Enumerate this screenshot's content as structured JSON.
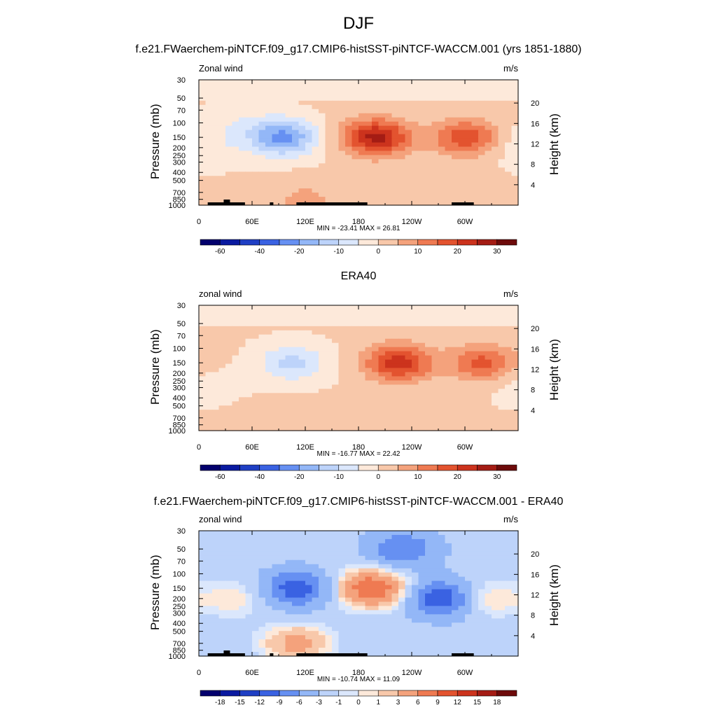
{
  "figure": {
    "title": "DJF"
  },
  "chart_data": [
    {
      "type": "heatmap",
      "title": "f.e21.FWaerchem-piNTCF.f09_g17.CMIP6-histSST-piNTCF-WACCM.001 (yrs 1851-1880)",
      "left_label": "Zonal wind",
      "right_label": "m/s",
      "ylabel": "Pressure (mb)",
      "y2label": "Height (km)",
      "x_ticks": [
        "0",
        "60E",
        "120E",
        "180",
        "120W",
        "60W"
      ],
      "y_ticks": [
        "30",
        "50",
        "70",
        "100",
        "150",
        "200",
        "250",
        "300",
        "400",
        "500",
        "700",
        "850",
        "1000"
      ],
      "y2_ticks": [
        "20",
        "16",
        "12",
        "8",
        "4"
      ],
      "min_max": "MIN = -23.41  MAX =  26.81",
      "min": -23.41,
      "max": 26.81,
      "colorbar_labels": [
        "-60",
        "-40",
        "-20",
        "-10",
        "0",
        "10",
        "20",
        "30"
      ],
      "features": [
        {
          "lon": 95,
          "p": 150,
          "v": -22
        },
        {
          "lon": 45,
          "p": 100,
          "v": -4
        },
        {
          "lon": 200,
          "p": 150,
          "v": 26
        },
        {
          "lon": 300,
          "p": 150,
          "v": 18
        },
        {
          "lon": 120,
          "p": 850,
          "v": 6
        },
        {
          "lon": 10,
          "p": 200,
          "v": -5
        }
      ]
    },
    {
      "type": "heatmap",
      "title": "ERA40",
      "left_label": "zonal wind",
      "right_label": "m/s",
      "ylabel": "Pressure (mb)",
      "y2label": "Height (km)",
      "x_ticks": [
        "0",
        "60E",
        "120E",
        "180",
        "120W",
        "60W"
      ],
      "y_ticks": [
        "30",
        "50",
        "70",
        "100",
        "150",
        "200",
        "250",
        "300",
        "400",
        "500",
        "700",
        "850",
        "1000"
      ],
      "y2_ticks": [
        "20",
        "16",
        "12",
        "8",
        "4"
      ],
      "min_max": "MIN = -16.77  MAX =  22.42",
      "min": -16.77,
      "max": 22.42,
      "colorbar_labels": [
        "-60",
        "-40",
        "-20",
        "-10",
        "0",
        "10",
        "20",
        "30"
      ],
      "features": [
        {
          "lon": 105,
          "p": 150,
          "v": -12
        },
        {
          "lon": 225,
          "p": 150,
          "v": 22
        },
        {
          "lon": 320,
          "p": 150,
          "v": 16
        },
        {
          "lon": 60,
          "p": 850,
          "v": 4
        },
        {
          "lon": 10,
          "p": 300,
          "v": -4
        }
      ]
    },
    {
      "type": "heatmap",
      "title": "f.e21.FWaerchem-piNTCF.f09_g17.CMIP6-histSST-piNTCF-WACCM.001 - ERA40",
      "left_label": "zonal wind",
      "right_label": "m/s",
      "ylabel": "Pressure (mb)",
      "y2label": "Height (km)",
      "x_ticks": [
        "0",
        "60E",
        "120E",
        "180",
        "120W",
        "60W"
      ],
      "y_ticks": [
        "30",
        "50",
        "70",
        "100",
        "150",
        "200",
        "250",
        "300",
        "400",
        "500",
        "700",
        "850",
        "1000"
      ],
      "y2_ticks": [
        "20",
        "16",
        "12",
        "8",
        "4"
      ],
      "min_max": "MIN = -10.74  MAX =  11.09",
      "min": -10.74,
      "max": 11.09,
      "colorbar_labels": [
        "-18",
        "-15",
        "-12",
        "-9",
        "-6",
        "-3",
        "-1",
        "0",
        "1",
        "3",
        "6",
        "9",
        "12",
        "15",
        "18"
      ],
      "features": [
        {
          "lon": 195,
          "p": 150,
          "v": 11
        },
        {
          "lon": 110,
          "p": 150,
          "v": -9
        },
        {
          "lon": 275,
          "p": 200,
          "v": -10
        },
        {
          "lon": 230,
          "p": 50,
          "v": -7
        },
        {
          "lon": 110,
          "p": 700,
          "v": 6
        },
        {
          "lon": 320,
          "p": 200,
          "v": 4
        },
        {
          "lon": 40,
          "p": 200,
          "v": 3
        }
      ]
    }
  ],
  "colors": {
    "div_scale": [
      "#03006d",
      "#0a1aa0",
      "#1f3fc4",
      "#3a62e2",
      "#6690f2",
      "#93b7f7",
      "#bdd3fa",
      "#dbe7fc",
      "#fde9da",
      "#f8c8aa",
      "#f4a27c",
      "#ef7a52",
      "#e3532f",
      "#cc331d",
      "#a41c14",
      "#6d0a0a"
    ],
    "topography": "#000000"
  }
}
